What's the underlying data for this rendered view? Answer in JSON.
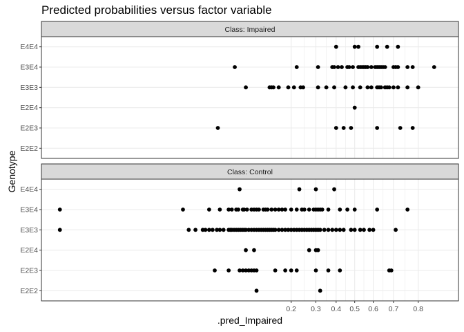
{
  "chart_data": {
    "type": "scatter",
    "title": "Predicted probabilities versus factor variable",
    "xlabel": ".pred_Impaired",
    "ylabel": "Genotype",
    "categories": [
      "E2E2",
      "E2E3",
      "E2E4",
      "E3E3",
      "E3E4",
      "E4E4"
    ],
    "x_scale": "logit",
    "x_ticks": [
      0.2,
      0.3,
      0.4,
      0.5,
      0.6,
      0.7,
      0.8
    ],
    "x_tick_labels": [
      "0.2",
      "0.3",
      "0.4",
      "0.5",
      "0.6",
      "0.7",
      "0.8"
    ],
    "xlim": [
      0.00107,
      0.906
    ],
    "grid": true,
    "facets": [
      {
        "strip_label": "Class: Impaired",
        "points": [
          {
            "y": "E4E4",
            "x": [
              0.4,
              0.5,
              0.52,
              0.62,
              0.67,
              0.72
            ]
          },
          {
            "y": "E3E4",
            "x": [
              0.068,
              0.22,
              0.31,
              0.38,
              0.39,
              0.41,
              0.43,
              0.46,
              0.47,
              0.49,
              0.52,
              0.53,
              0.54,
              0.55,
              0.56,
              0.57,
              0.59,
              0.61,
              0.62,
              0.63,
              0.64,
              0.65,
              0.66,
              0.7,
              0.71,
              0.72,
              0.76,
              0.78,
              0.85
            ]
          },
          {
            "y": "E3E3",
            "x": [
              0.085,
              0.135,
              0.14,
              0.145,
              0.16,
              0.19,
              0.21,
              0.235,
              0.245,
              0.31,
              0.35,
              0.39,
              0.45,
              0.49,
              0.53,
              0.57,
              0.59,
              0.62,
              0.63,
              0.64,
              0.66,
              0.67,
              0.68,
              0.7,
              0.72,
              0.76,
              0.8
            ]
          },
          {
            "y": "E2E4",
            "x": [
              0.5
            ]
          },
          {
            "y": "E2E3",
            "x": [
              0.048,
              0.4,
              0.44,
              0.48,
              0.62,
              0.73,
              0.78
            ]
          },
          {
            "y": "E2E2",
            "x": []
          }
        ]
      },
      {
        "strip_label": "Class: Control",
        "points": [
          {
            "y": "E4E4",
            "x": [
              0.075,
              0.23,
              0.3,
              0.39
            ]
          },
          {
            "y": "E3E4",
            "x": [
              0.0016,
              0.023,
              0.04,
              0.05,
              0.06,
              0.064,
              0.07,
              0.073,
              0.08,
              0.082,
              0.087,
              0.095,
              0.1,
              0.105,
              0.11,
              0.12,
              0.125,
              0.13,
              0.14,
              0.15,
              0.16,
              0.17,
              0.18,
              0.2,
              0.22,
              0.24,
              0.25,
              0.27,
              0.29,
              0.3,
              0.31,
              0.32,
              0.33,
              0.36,
              0.42,
              0.46,
              0.5,
              0.62,
              0.76
            ]
          },
          {
            "y": "E3E3",
            "x": [
              0.0016,
              0.026,
              0.03,
              0.035,
              0.037,
              0.04,
              0.043,
              0.047,
              0.05,
              0.054,
              0.06,
              0.062,
              0.064,
              0.067,
              0.07,
              0.073,
              0.076,
              0.079,
              0.082,
              0.085,
              0.09,
              0.095,
              0.1,
              0.105,
              0.11,
              0.115,
              0.12,
              0.125,
              0.13,
              0.135,
              0.14,
              0.145,
              0.15,
              0.16,
              0.17,
              0.18,
              0.19,
              0.2,
              0.21,
              0.22,
              0.23,
              0.24,
              0.25,
              0.26,
              0.27,
              0.28,
              0.29,
              0.3,
              0.31,
              0.32,
              0.34,
              0.36,
              0.38,
              0.4,
              0.42,
              0.44,
              0.48,
              0.5,
              0.53,
              0.55,
              0.58,
              0.6,
              0.71
            ]
          },
          {
            "y": "E2E4",
            "x": [
              0.085,
              0.1,
              0.27,
              0.3,
              0.31
            ]
          },
          {
            "y": "E2E3",
            "x": [
              0.045,
              0.06,
              0.075,
              0.08,
              0.085,
              0.09,
              0.095,
              0.1,
              0.105,
              0.15,
              0.18,
              0.2,
              0.22,
              0.3,
              0.36,
              0.42,
              0.68,
              0.69
            ]
          },
          {
            "y": "E2E2",
            "x": [
              0.105,
              0.32
            ]
          }
        ]
      }
    ],
    "colors": {
      "point": "#000000",
      "panel_bg": "#ffffff",
      "panel_border": "#333333",
      "strip_bg": "#d9d9d9",
      "grid": "#ebebeb"
    }
  }
}
